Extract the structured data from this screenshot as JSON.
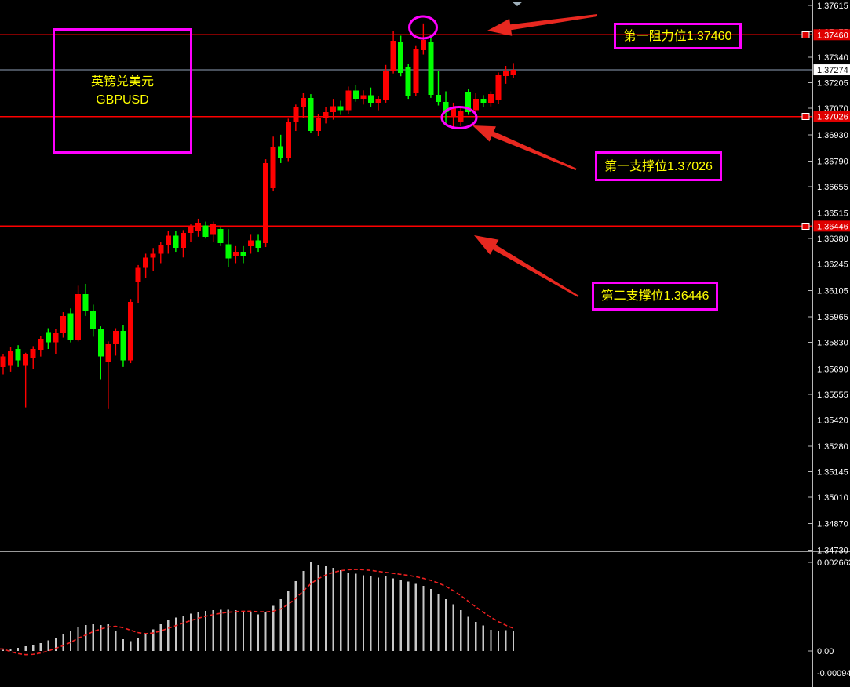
{
  "annotations": {
    "symbol_box": {
      "line1": "英镑兑美元",
      "line2": "GBPUSD"
    },
    "resistance1": {
      "label": "第一阻力位1.37460"
    },
    "support1": {
      "label": "第一支撑位1.37026"
    },
    "support2": {
      "label": "第二支撑位1.36446"
    }
  },
  "colors": {
    "background": "#000000",
    "bull_candle": "#FF0000",
    "bear_candle": "#00FF00",
    "level_line": "#FF0000",
    "current_price_line": "#90A0B8",
    "axis_line": "#B8B8B8",
    "axis_text": "#FFFFFF",
    "level_badge_bg": "#DF0000",
    "level_badge_text": "#FFFFFF",
    "current_badge_bg": "#FFFFFF",
    "current_badge_text": "#000000",
    "histogram_bar": "#C8C8C8",
    "signal_line": "#F02020",
    "annotation_accent": "#FF00FF",
    "annotation_text": "#FFFF00",
    "arrow": "#E82820",
    "top_marker": "#9FB0BC"
  },
  "chart_data": {
    "type": "candlestick",
    "symbol": "GBPUSD",
    "price_axis": {
      "labels": [
        "1.37615",
        "1.37475",
        "1.37340",
        "1.37205",
        "1.37070",
        "1.36930",
        "1.36790",
        "1.36655",
        "1.36515",
        "1.36380",
        "1.36245",
        "1.36105",
        "1.35965",
        "1.35830",
        "1.35690",
        "1.35555",
        "1.35420",
        "1.35280",
        "1.35145",
        "1.35010",
        "1.34870",
        "1.34730"
      ],
      "current_price": {
        "price": 1.37274,
        "label": "1.37274"
      },
      "levels": [
        {
          "price": 1.3746,
          "label": "1.37460",
          "role": "resistance"
        },
        {
          "price": 1.37026,
          "label": "1.37026",
          "role": "support"
        },
        {
          "price": 1.36446,
          "label": "1.36446",
          "role": "support"
        }
      ]
    },
    "candles": [
      [
        1.357,
        1.3577,
        1.3566,
        1.35755
      ],
      [
        1.35705,
        1.35805,
        1.35675,
        1.35785
      ],
      [
        1.35795,
        1.35815,
        1.357,
        1.35735
      ],
      [
        1.35705,
        1.35775,
        1.35485,
        1.35765
      ],
      [
        1.35745,
        1.3581,
        1.3569,
        1.35795
      ],
      [
        1.3579,
        1.35865,
        1.35755,
        1.3585
      ],
      [
        1.35885,
        1.35905,
        1.35795,
        1.3583
      ],
      [
        1.3583,
        1.359,
        1.3577,
        1.3588
      ],
      [
        1.3588,
        1.3599,
        1.35855,
        1.3597
      ],
      [
        1.35985,
        1.3601,
        1.3583,
        1.3584
      ],
      [
        1.35845,
        1.3613,
        1.35835,
        1.36085
      ],
      [
        1.36085,
        1.3614,
        1.3597,
        1.35995
      ],
      [
        1.35995,
        1.3603,
        1.3586,
        1.359
      ],
      [
        1.359,
        1.35915,
        1.35635,
        1.35755
      ],
      [
        1.35725,
        1.35835,
        1.3548,
        1.3582
      ],
      [
        1.3582,
        1.35905,
        1.3576,
        1.3589
      ],
      [
        1.3589,
        1.3592,
        1.357,
        1.35735
      ],
      [
        1.35735,
        1.3606,
        1.3572,
        1.36045
      ],
      [
        1.3615,
        1.3624,
        1.3604,
        1.36225
      ],
      [
        1.36225,
        1.363,
        1.3617,
        1.3628
      ],
      [
        1.3628,
        1.3633,
        1.3621,
        1.363
      ],
      [
        1.363,
        1.3636,
        1.3625,
        1.36345
      ],
      [
        1.36345,
        1.3642,
        1.363,
        1.36395
      ],
      [
        1.36395,
        1.3642,
        1.3631,
        1.3633
      ],
      [
        1.3633,
        1.36425,
        1.3628,
        1.3641
      ],
      [
        1.3641,
        1.36455,
        1.3636,
        1.3644
      ],
      [
        1.3642,
        1.36485,
        1.3639,
        1.36465
      ],
      [
        1.3645,
        1.3647,
        1.3638,
        1.3639
      ],
      [
        1.364,
        1.3647,
        1.3636,
        1.36455
      ],
      [
        1.3643,
        1.3644,
        1.3634,
        1.36355
      ],
      [
        1.3635,
        1.3643,
        1.3623,
        1.36275
      ],
      [
        1.3629,
        1.3634,
        1.3625,
        1.3631
      ],
      [
        1.3631,
        1.3634,
        1.3625,
        1.36285
      ],
      [
        1.3634,
        1.364,
        1.363,
        1.3637
      ],
      [
        1.3637,
        1.364,
        1.3631,
        1.3633
      ],
      [
        1.36356,
        1.368,
        1.36335,
        1.3678
      ],
      [
        1.36647,
        1.3692,
        1.3663,
        1.36863
      ],
      [
        1.3687,
        1.3693,
        1.3678,
        1.36805
      ],
      [
        1.36805,
        1.37015,
        1.3679,
        1.37
      ],
      [
        1.37,
        1.3709,
        1.3695,
        1.37075
      ],
      [
        1.37075,
        1.3715,
        1.3702,
        1.37125
      ],
      [
        1.37125,
        1.37145,
        1.3694,
        1.3695
      ],
      [
        1.3695,
        1.3704,
        1.36925,
        1.3702
      ],
      [
        1.3702,
        1.37075,
        1.3699,
        1.3705
      ],
      [
        1.3705,
        1.3712,
        1.3701,
        1.3708
      ],
      [
        1.3708,
        1.3711,
        1.37035,
        1.3706
      ],
      [
        1.3706,
        1.37185,
        1.3704,
        1.37165
      ],
      [
        1.37165,
        1.37195,
        1.37105,
        1.3712
      ],
      [
        1.3712,
        1.37165,
        1.3709,
        1.3714
      ],
      [
        1.3714,
        1.3718,
        1.37075,
        1.371
      ],
      [
        1.371,
        1.37135,
        1.3706,
        1.3712
      ],
      [
        1.37115,
        1.373,
        1.371,
        1.3727
      ],
      [
        1.3727,
        1.37478,
        1.37255,
        1.37428
      ],
      [
        1.37424,
        1.37455,
        1.3724,
        1.37258
      ],
      [
        1.37291,
        1.37305,
        1.3712,
        1.37137
      ],
      [
        1.37154,
        1.374,
        1.37135,
        1.37386
      ],
      [
        1.37378,
        1.3752,
        1.37355,
        1.37432
      ],
      [
        1.37424,
        1.37445,
        1.37125,
        1.37141
      ],
      [
        1.37141,
        1.3727,
        1.37085,
        1.37104
      ],
      [
        1.37104,
        1.3716,
        1.3699,
        1.3705
      ],
      [
        1.3703,
        1.371,
        1.3697,
        1.3707
      ],
      [
        1.37,
        1.3708,
        1.36975,
        1.37055
      ],
      [
        1.37158,
        1.3717,
        1.37035,
        1.3705
      ],
      [
        1.3706,
        1.3715,
        1.3702,
        1.3712
      ],
      [
        1.3712,
        1.3714,
        1.37075,
        1.371
      ],
      [
        1.371,
        1.3716,
        1.3708,
        1.37145
      ],
      [
        1.37116,
        1.3726,
        1.37095,
        1.37249
      ],
      [
        1.37241,
        1.37295,
        1.372,
        1.3727
      ],
      [
        1.37245,
        1.3731,
        1.3723,
        1.37274
      ]
    ],
    "macd": {
      "scale_labels": [
        "0.002662",
        "0.00",
        "-0.000942"
      ],
      "max": 0.002662,
      "min": -0.000942,
      "histogram": [
        4e-05,
        7e-05,
        0.0001,
        0.00014,
        0.00018,
        0.00024,
        0.00032,
        0.0004,
        0.0005,
        0.0006,
        0.00072,
        0.00078,
        0.0008,
        0.00078,
        0.0008,
        0.0006,
        0.00035,
        0.0003,
        0.00038,
        0.0005,
        0.00065,
        0.0008,
        0.00092,
        0.001,
        0.00106,
        0.00112,
        0.00116,
        0.0012,
        0.00122,
        0.00124,
        0.00124,
        0.00122,
        0.0012,
        0.00115,
        0.0011,
        0.00118,
        0.00135,
        0.00155,
        0.0018,
        0.0021,
        0.0024,
        0.00266,
        0.00259,
        0.00255,
        0.0025,
        0.00243,
        0.00236,
        0.00232,
        0.00227,
        0.00225,
        0.0022,
        0.00225,
        0.00218,
        0.00213,
        0.00209,
        0.00202,
        0.00195,
        0.00186,
        0.00172,
        0.00156,
        0.0014,
        0.00122,
        0.00103,
        0.00087,
        0.00076,
        0.00064,
        0.0006,
        0.00062,
        0.0006
      ],
      "signal": [
        6e-05,
        -2e-05,
        -8e-05,
        -0.00011,
        -0.0001,
        -6e-05,
        0.0,
        8e-05,
        0.00016,
        0.00026,
        0.00038,
        0.00048,
        0.00058,
        0.00066,
        0.00072,
        0.00074,
        0.0007,
        0.00062,
        0.00055,
        0.00052,
        0.00054,
        0.0006,
        0.00068,
        0.00076,
        0.00084,
        0.00091,
        0.00098,
        0.00104,
        0.00109,
        0.00113,
        0.00116,
        0.00118,
        0.00119,
        0.00119,
        0.00118,
        0.00117,
        0.00119,
        0.00126,
        0.0014,
        0.00158,
        0.0018,
        0.00202,
        0.00217,
        0.00228,
        0.00236,
        0.00241,
        0.00244,
        0.00245,
        0.00244,
        0.00242,
        0.00239,
        0.00236,
        0.00233,
        0.0023,
        0.00227,
        0.00223,
        0.00218,
        0.00212,
        0.00204,
        0.00194,
        0.00181,
        0.00166,
        0.00149,
        0.00132,
        0.00116,
        0.00101,
        0.00088,
        0.00077,
        0.00068
      ]
    },
    "markers": {
      "top_triangle": "triangle-down"
    }
  }
}
